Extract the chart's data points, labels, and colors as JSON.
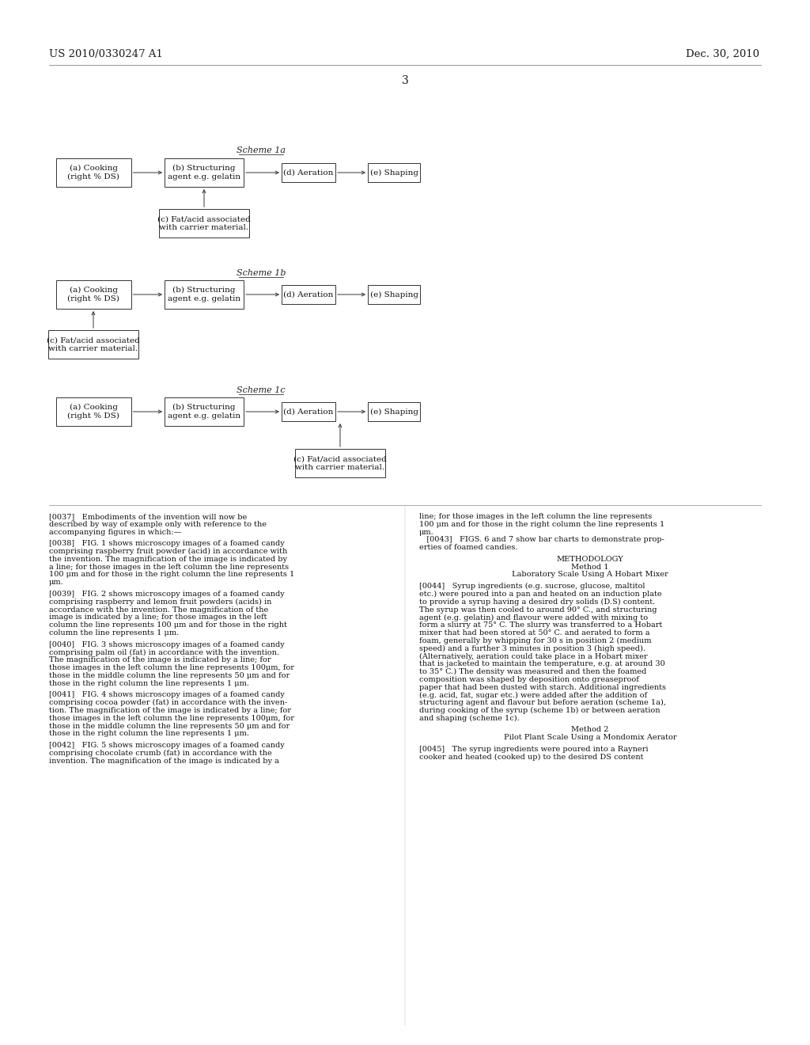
{
  "background_color": "#ffffff",
  "header_left": "US 2010/0330247 A1",
  "header_right": "Dec. 30, 2010",
  "page_number": "3",
  "scheme1a_title": "Scheme 1a",
  "scheme1b_title": "Scheme 1b",
  "scheme1c_title": "Scheme 1c",
  "box_a": "(a) Cooking\n(right % DS)",
  "box_b": "(b) Structuring\nagent e.g. gelatin",
  "box_d": "(d) Aeration",
  "box_e": "(e) Shaping",
  "box_c": "(c) Fat/acid associated\nwith carrier material.",
  "col1_lines": [
    {
      "text": "[0037]   Embodiments of the invention will now be",
      "indent": false
    },
    {
      "text": "described by way of example only with reference to the",
      "indent": false
    },
    {
      "text": "accompanying figures in which:—",
      "indent": false
    },
    {
      "text": "",
      "indent": false
    },
    {
      "text": "[0038]   FIG. 1 shows microscopy images of a foamed candy",
      "indent": false
    },
    {
      "text": "comprising raspberry fruit powder (acid) in accordance with",
      "indent": false
    },
    {
      "text": "the invention. The magnification of the image is indicated by",
      "indent": false
    },
    {
      "text": "a line; for those images in the left column the line represents",
      "indent": false
    },
    {
      "text": "100 μm and for those in the right column the line represents 1",
      "indent": false
    },
    {
      "text": "μm.",
      "indent": false
    },
    {
      "text": "",
      "indent": false
    },
    {
      "text": "[0039]   FIG. 2 shows microscopy images of a foamed candy",
      "indent": false
    },
    {
      "text": "comprising raspberry and lemon fruit powders (acids) in",
      "indent": false
    },
    {
      "text": "accordance with the invention. The magnification of the",
      "indent": false
    },
    {
      "text": "image is indicated by a line; for those images in the left",
      "indent": false
    },
    {
      "text": "column the line represents 100 μm and for those in the right",
      "indent": false
    },
    {
      "text": "column the line represents 1 μm.",
      "indent": false
    },
    {
      "text": "",
      "indent": false
    },
    {
      "text": "[0040]   FIG. 3 shows microscopy images of a foamed candy",
      "indent": false
    },
    {
      "text": "comprising palm oil (fat) in accordance with the invention.",
      "indent": false
    },
    {
      "text": "The magnification of the image is indicated by a line; for",
      "indent": false
    },
    {
      "text": "those images in the left column the line represents 100μm, for",
      "indent": false
    },
    {
      "text": "those in the middle column the line represents 50 μm and for",
      "indent": false
    },
    {
      "text": "those in the right column the line represents 1 μm.",
      "indent": false
    },
    {
      "text": "",
      "indent": false
    },
    {
      "text": "[0041]   FIG. 4 shows microscopy images of a foamed candy",
      "indent": false
    },
    {
      "text": "comprising cocoa powder (fat) in accordance with the inven-",
      "indent": false
    },
    {
      "text": "tion. The magnification of the image is indicated by a line; for",
      "indent": false
    },
    {
      "text": "those images in the left column the line represents 100μm, for",
      "indent": false
    },
    {
      "text": "those in the middle column the line represents 50 μm and for",
      "indent": false
    },
    {
      "text": "those in the right column the line represents 1 μm.",
      "indent": false
    },
    {
      "text": "",
      "indent": false
    },
    {
      "text": "[0042]   FIG. 5 shows microscopy images of a foamed candy",
      "indent": false
    },
    {
      "text": "comprising chocolate crumb (fat) in accordance with the",
      "indent": false
    },
    {
      "text": "invention. The magnification of the image is indicated by a",
      "indent": false
    }
  ],
  "col2_lines": [
    {
      "text": "line; for those images in the left column the line represents",
      "center": false
    },
    {
      "text": "100 μm and for those in the right column the line represents 1",
      "center": false
    },
    {
      "text": "μm.",
      "center": false
    },
    {
      "text": "   [0043]   FIGS. 6 and 7 show bar charts to demonstrate prop-",
      "center": false
    },
    {
      "text": "erties of foamed candies.",
      "center": false
    },
    {
      "text": "",
      "center": false
    },
    {
      "text": "METHODOLOGY",
      "center": true
    },
    {
      "text": "Method 1",
      "center": true
    },
    {
      "text": "Laboratory Scale Using A Hobart Mixer",
      "center": true
    },
    {
      "text": "",
      "center": false
    },
    {
      "text": "[0044]   Syrup ingredients (e.g. sucrose, glucose, maltitol",
      "center": false
    },
    {
      "text": "etc.) were poured into a pan and heated on an induction plate",
      "center": false
    },
    {
      "text": "to provide a syrup having a desired dry solids (D.S) content.",
      "center": false
    },
    {
      "text": "The syrup was then cooled to around 90° C., and structuring",
      "center": false
    },
    {
      "text": "agent (e.g. gelatin) and flavour were added with mixing to",
      "center": false
    },
    {
      "text": "form a slurry at 75° C. The slurry was transferred to a Hobart",
      "center": false
    },
    {
      "text": "mixer that had been stored at 50° C. and aerated to form a",
      "center": false
    },
    {
      "text": "foam, generally by whipping for 30 s in position 2 (medium",
      "center": false
    },
    {
      "text": "speed) and a further 3 minutes in position 3 (high speed).",
      "center": false
    },
    {
      "text": "(Alternatively, aeration could take place in a Hobart mixer",
      "center": false
    },
    {
      "text": "that is jacketed to maintain the temperature, e.g. at around 30",
      "center": false
    },
    {
      "text": "to 35° C.) The density was measured and then the foamed",
      "center": false
    },
    {
      "text": "composition was shaped by deposition onto greaseproof",
      "center": false
    },
    {
      "text": "paper that had been dusted with starch. Additional ingredients",
      "center": false
    },
    {
      "text": "(e.g. acid, fat, sugar etc.) were added after the addition of",
      "center": false
    },
    {
      "text": "structuring agent and flavour but before aeration (scheme 1a),",
      "center": false
    },
    {
      "text": "during cooking of the syrup (scheme 1b) or between aeration",
      "center": false
    },
    {
      "text": "and shaping (scheme 1c).",
      "center": false
    },
    {
      "text": "",
      "center": false
    },
    {
      "text": "Method 2",
      "center": true
    },
    {
      "text": "Pilot Plant Scale Using a Mondomix Aerator",
      "center": true
    },
    {
      "text": "",
      "center": false
    },
    {
      "text": "[0045]   The syrup ingredients were poured into a Rayneri",
      "center": false
    },
    {
      "text": "cooker and heated (cooked up) to the desired DS content",
      "center": false
    }
  ]
}
